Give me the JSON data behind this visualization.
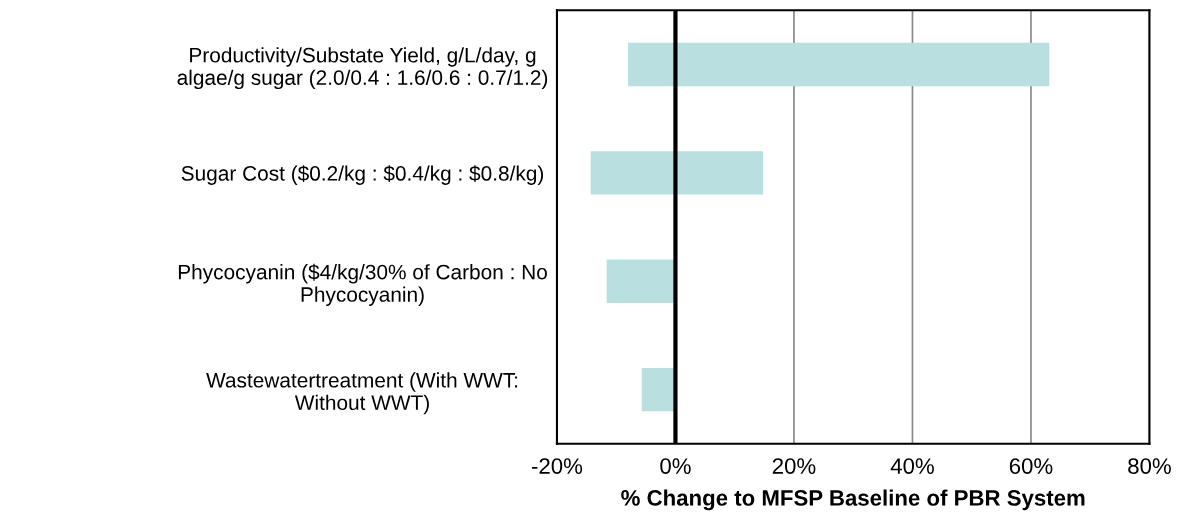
{
  "chart_data": {
    "type": "bar",
    "orientation": "horizontal",
    "xlabel": "% Change to MFSP Baseline of PBR System",
    "categories": [
      "Productivity/Substate Yield, g/L/day, g\nalgae/g sugar (2.0/0.4 : 1.6/0.6 : 0.7/1.2)",
      "Sugar Cost ($0.2/kg : $0.4/kg : $0.8/kg)",
      "Phycocyanin ($4/kg/30% of Carbon : No\nPhycocyanin)",
      "Wastewatertreatment (With WWT:\nWithout WWT)"
    ],
    "base": [
      -8,
      -14.3,
      -11.6,
      -5.7
    ],
    "values": [
      71.1,
      29.1,
      11.6,
      5.7
    ],
    "color": "#b9dfe1",
    "xlim": [
      -20,
      80
    ],
    "xticks": [
      {
        "value": -20,
        "label": "-20%"
      },
      {
        "value": 0,
        "label": "0%"
      },
      {
        "value": 20,
        "label": "20%"
      },
      {
        "value": 40,
        "label": "40%"
      },
      {
        "value": 60,
        "label": "60%"
      },
      {
        "value": 80,
        "label": "80%"
      }
    ],
    "grid": "x",
    "ref_lines": [
      {
        "axis": "x",
        "value": 0,
        "color": "#000000"
      }
    ]
  }
}
